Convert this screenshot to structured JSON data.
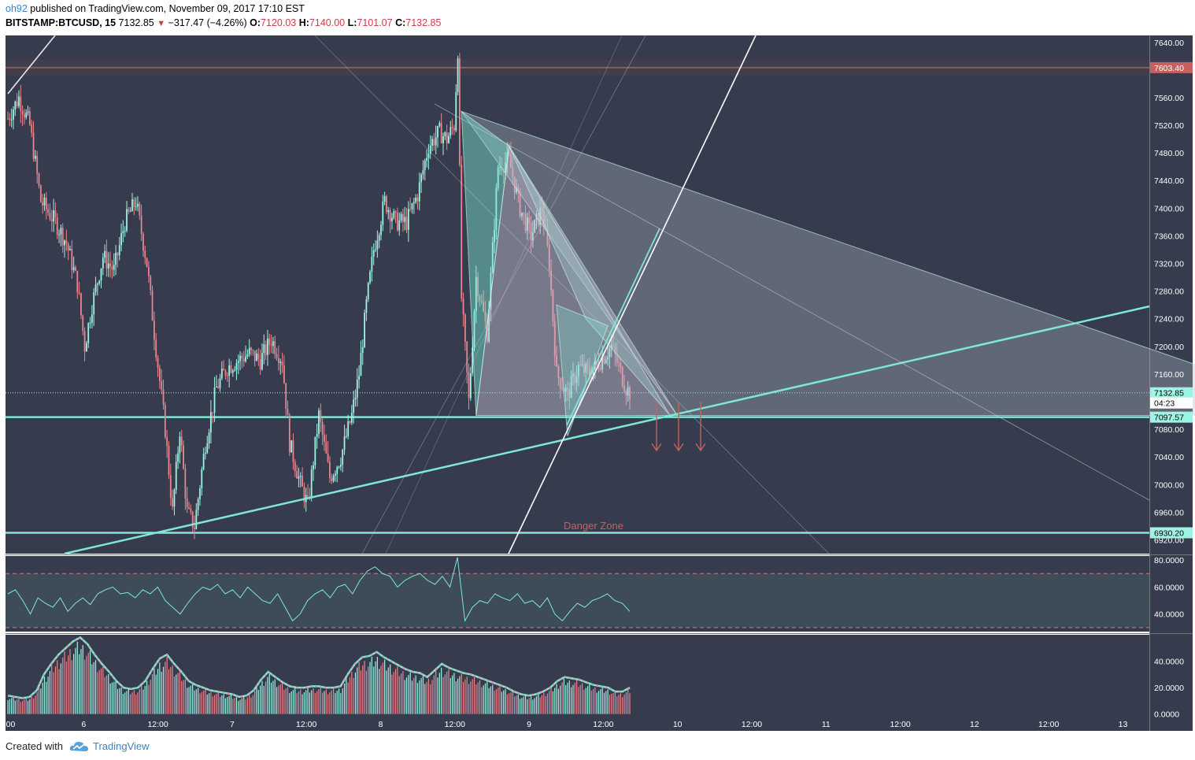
{
  "header": {
    "author": "oh92",
    "published": "published on TradingView.com, November 09, 2017 17:10 EST",
    "symbol": "BITSTAMP:BTCUSD, 15",
    "price": "7132.85",
    "change": "−317.47 (−4.26%)",
    "o_label": "O:",
    "o_value": "7120.03",
    "h_label": "H:",
    "h_value": "7140.00",
    "l_label": "L:",
    "l_value": "7101.07",
    "c_label": "C:",
    "c_value": "7132.85"
  },
  "footer": {
    "created_with": "Created with",
    "brand": "TradingView"
  },
  "colors": {
    "background": "#363c4e",
    "up": "#53b987",
    "up_light": "#9ff3e3",
    "down": "#eb4d5c",
    "down_light": "#e9848e",
    "line_teal": "#7ee8d5",
    "axis_text": "#ffffff",
    "rsi_band": "#3d4c56"
  },
  "chart_data": [
    {
      "type": "candlestick",
      "title": "BITSTAMP:BTCUSD, 15",
      "ylim": [
        6900,
        7650
      ],
      "y_ticks": [
        "7640.00",
        "7560.00",
        "7520.00",
        "7480.00",
        "7440.00",
        "7400.00",
        "7360.00",
        "7320.00",
        "7280.00",
        "7240.00",
        "7200.00",
        "7160.00",
        "7080.00",
        "7040.00",
        "7000.00",
        "6960.00",
        "6920.00"
      ],
      "x_ticks": [
        ":00",
        "6",
        "12:00",
        "7",
        "12:00",
        "8",
        "12:00",
        "9",
        "12:00",
        "10",
        "12:00",
        "11",
        "12:00",
        "12",
        "12:00",
        "13"
      ],
      "price_labels": [
        {
          "value": 7603.4,
          "text": "7603.40",
          "kind": "resistance"
        },
        {
          "value": 7132.85,
          "text": "7132.85",
          "kind": "last"
        },
        {
          "value": 7097.57,
          "text": "7097.57",
          "kind": "support"
        },
        {
          "value": 6930.2,
          "text": "6930.20",
          "kind": "support"
        }
      ],
      "countdown": "04:23",
      "annotation": "Danger Zone",
      "close_path": [
        {
          "t": 0,
          "v": 7530
        },
        {
          "t": 3,
          "v": 7560
        },
        {
          "t": 6,
          "v": 7520
        },
        {
          "t": 9,
          "v": 7410
        },
        {
          "t": 13,
          "v": 7380
        },
        {
          "t": 16,
          "v": 7350
        },
        {
          "t": 19,
          "v": 7290
        },
        {
          "t": 21,
          "v": 7200
        },
        {
          "t": 23,
          "v": 7260
        },
        {
          "t": 26,
          "v": 7330
        },
        {
          "t": 29,
          "v": 7310
        },
        {
          "t": 32,
          "v": 7380
        },
        {
          "t": 35,
          "v": 7410
        },
        {
          "t": 38,
          "v": 7320
        },
        {
          "t": 40,
          "v": 7220
        },
        {
          "t": 43,
          "v": 7080
        },
        {
          "t": 45,
          "v": 6960
        },
        {
          "t": 47,
          "v": 7080
        },
        {
          "t": 49,
          "v": 6960
        },
        {
          "t": 51,
          "v": 6940
        },
        {
          "t": 54,
          "v": 7060
        },
        {
          "t": 57,
          "v": 7140
        },
        {
          "t": 60,
          "v": 7170
        },
        {
          "t": 63,
          "v": 7180
        },
        {
          "t": 66,
          "v": 7190
        },
        {
          "t": 69,
          "v": 7180
        },
        {
          "t": 72,
          "v": 7210
        },
        {
          "t": 75,
          "v": 7180
        },
        {
          "t": 77,
          "v": 7060
        },
        {
          "t": 80,
          "v": 7000
        },
        {
          "t": 82,
          "v": 6970
        },
        {
          "t": 85,
          "v": 7100
        },
        {
          "t": 88,
          "v": 7010
        },
        {
          "t": 91,
          "v": 7040
        },
        {
          "t": 94,
          "v": 7100
        },
        {
          "t": 96,
          "v": 7160
        },
        {
          "t": 98,
          "v": 7260
        },
        {
          "t": 100,
          "v": 7340
        },
        {
          "t": 103,
          "v": 7410
        },
        {
          "t": 106,
          "v": 7380
        },
        {
          "t": 109,
          "v": 7380
        },
        {
          "t": 112,
          "v": 7420
        },
        {
          "t": 115,
          "v": 7490
        },
        {
          "t": 118,
          "v": 7510
        },
        {
          "t": 120,
          "v": 7500
        },
        {
          "t": 122,
          "v": 7520
        },
        {
          "t": 123,
          "v": 7630
        },
        {
          "t": 124,
          "v": 7270
        },
        {
          "t": 126,
          "v": 7120
        },
        {
          "t": 128,
          "v": 7300
        },
        {
          "t": 131,
          "v": 7220
        },
        {
          "t": 134,
          "v": 7460
        },
        {
          "t": 137,
          "v": 7470
        },
        {
          "t": 140,
          "v": 7400
        },
        {
          "t": 143,
          "v": 7360
        },
        {
          "t": 146,
          "v": 7400
        },
        {
          "t": 148,
          "v": 7320
        },
        {
          "t": 150,
          "v": 7160
        },
        {
          "t": 153,
          "v": 7130
        },
        {
          "t": 156,
          "v": 7170
        },
        {
          "t": 159,
          "v": 7160
        },
        {
          "t": 162,
          "v": 7180
        },
        {
          "t": 165,
          "v": 7200
        },
        {
          "t": 167,
          "v": 7170
        },
        {
          "t": 169,
          "v": 7140
        },
        {
          "t": 170,
          "v": 7132.85
        }
      ]
    },
    {
      "type": "line",
      "name": "RSI",
      "ylim": [
        27,
        83
      ],
      "y_ticks": [
        "80.0000",
        "60.0000",
        "40.0000"
      ],
      "bands": [
        70,
        30
      ],
      "values": [
        55,
        58,
        50,
        40,
        52,
        48,
        45,
        52,
        42,
        48,
        52,
        47,
        55,
        58,
        60,
        55,
        56,
        52,
        58,
        55,
        60,
        50,
        45,
        40,
        48,
        55,
        60,
        58,
        62,
        55,
        58,
        52,
        60,
        55,
        50,
        48,
        55,
        45,
        35,
        40,
        50,
        55,
        58,
        52,
        60,
        62,
        55,
        65,
        72,
        75,
        70,
        68,
        60,
        65,
        68,
        70,
        65,
        62,
        68,
        60,
        82,
        35,
        45,
        50,
        48,
        55,
        52,
        50,
        55,
        48,
        50,
        45,
        52,
        40,
        35,
        42,
        48,
        45,
        50,
        52,
        55,
        50,
        48,
        42
      ]
    },
    {
      "type": "bar",
      "name": "Volume",
      "ylim": [
        -2,
        60
      ],
      "y_ticks": [
        "40.0000",
        "20.0000",
        "0.0000"
      ],
      "values": [
        14,
        13,
        12,
        13,
        18,
        30,
        38,
        45,
        50,
        55,
        58,
        53,
        45,
        38,
        32,
        25,
        20,
        19,
        20,
        25,
        34,
        42,
        45,
        38,
        32,
        25,
        22,
        20,
        18,
        17,
        16,
        15,
        13,
        14,
        18,
        26,
        32,
        28,
        24,
        21,
        20,
        20,
        21,
        21,
        20,
        20,
        21,
        30,
        38,
        43,
        44,
        47,
        43,
        40,
        37,
        34,
        32,
        31,
        28,
        33,
        38,
        35,
        33,
        31,
        30,
        28,
        26,
        24,
        22,
        20,
        17,
        15,
        14,
        15,
        17,
        20,
        25,
        28,
        27,
        26,
        24,
        22,
        21,
        20,
        17,
        17,
        20
      ]
    }
  ]
}
